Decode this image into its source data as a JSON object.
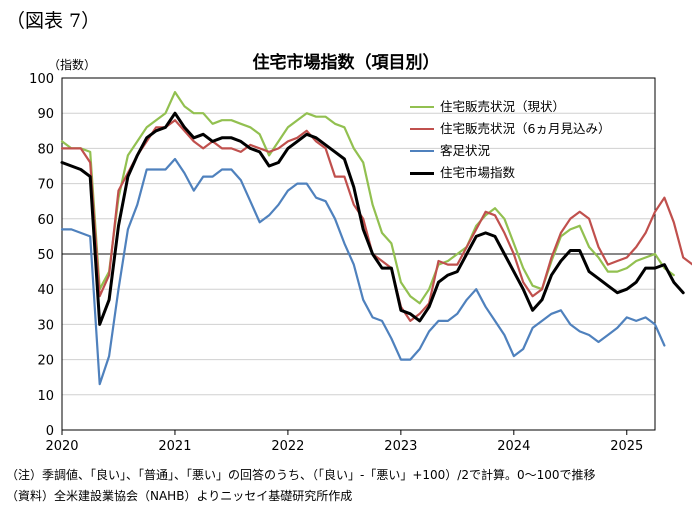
{
  "figure": {
    "label": "（図表 7）",
    "title": "住宅市場指数（項目別）",
    "unit": "（指数）",
    "notes": [
      "（注）季調値、「良い」、「普通」、「悪い」の回答のうち、（「良い」-「悪い」+100）/2で計算。0～100で推移",
      "（資料）全米建設業協会（NAHB）よりニッセイ基礎研究所作成"
    ]
  },
  "chart_data": {
    "type": "line",
    "title": "住宅市場指数（項目別）",
    "xlabel": "",
    "ylabel": "（指数）",
    "ylim": [
      0,
      100
    ],
    "yticks": [
      0,
      10,
      20,
      30,
      40,
      50,
      60,
      70,
      80,
      90,
      100
    ],
    "x_tick_labels": [
      "2020",
      "2021",
      "2022",
      "2023",
      "2024",
      "2025"
    ],
    "x_start": "2020-01",
    "x_end": "2025-04",
    "grid": true,
    "reference_line": 50,
    "legend_position": "upper-right",
    "series": [
      {
        "name": "住宅販売状況（現状）",
        "color": "#92c050",
        "width": 2.2,
        "values": [
          82,
          80,
          80,
          79,
          40,
          45,
          66,
          78,
          82,
          86,
          88,
          90,
          96,
          92,
          90,
          90,
          87,
          88,
          88,
          87,
          86,
          84,
          78,
          82,
          86,
          88,
          90,
          89,
          89,
          87,
          86,
          80,
          76,
          64,
          56,
          53,
          42,
          38,
          36,
          40,
          47,
          48,
          50,
          52,
          58,
          61,
          63,
          60,
          53,
          46,
          41,
          40,
          48,
          55,
          57,
          58,
          52,
          49,
          45,
          45,
          46,
          48,
          49,
          50,
          46,
          44
        ]
      },
      {
        "name": "住宅販売状況（6ヵ月見込み）",
        "color": "#c0504d",
        "width": 2.2,
        "values": [
          80,
          80,
          80,
          76,
          38,
          44,
          68,
          73,
          78,
          82,
          86,
          86,
          88,
          85,
          82,
          80,
          82,
          80,
          80,
          79,
          81,
          80,
          79,
          80,
          82,
          83,
          85,
          82,
          80,
          72,
          72,
          64,
          60,
          50,
          48,
          46,
          35,
          31,
          33,
          36,
          48,
          47,
          47,
          52,
          57,
          62,
          61,
          56,
          50,
          42,
          38,
          40,
          49,
          56,
          60,
          62,
          60,
          52,
          47,
          48,
          49,
          52,
          56,
          62,
          66,
          59,
          49,
          47
        ]
      },
      {
        "name": "客足状況",
        "color": "#4f81bd",
        "width": 2.2,
        "values": [
          57,
          57,
          56,
          55,
          13,
          21,
          40,
          57,
          64,
          74,
          74,
          74,
          77,
          73,
          68,
          72,
          72,
          74,
          74,
          71,
          65,
          59,
          61,
          64,
          68,
          70,
          70,
          66,
          65,
          60,
          53,
          47,
          37,
          32,
          31,
          26,
          20,
          20,
          23,
          28,
          31,
          31,
          33,
          37,
          40,
          35,
          31,
          27,
          21,
          23,
          29,
          31,
          33,
          34,
          30,
          28,
          27,
          25,
          27,
          29,
          32,
          31,
          32,
          30,
          24
        ]
      },
      {
        "name": "住宅市場指数",
        "color": "#000000",
        "width": 3,
        "values": [
          76,
          75,
          74,
          72,
          30,
          37,
          58,
          72,
          78,
          83,
          85,
          86,
          90,
          86,
          83,
          84,
          82,
          83,
          83,
          82,
          80,
          79,
          75,
          76,
          80,
          82,
          84,
          83,
          81,
          79,
          77,
          69,
          57,
          50,
          46,
          46,
          34,
          33,
          31,
          35,
          42,
          44,
          45,
          50,
          55,
          56,
          55,
          50,
          45,
          40,
          34,
          37,
          44,
          48,
          51,
          51,
          45,
          43,
          41,
          39,
          40,
          42,
          46,
          46,
          47,
          42,
          39
        ]
      }
    ]
  }
}
